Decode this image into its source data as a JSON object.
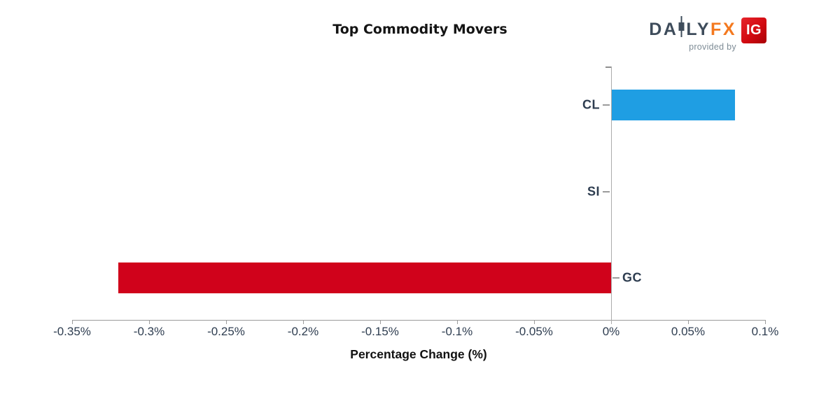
{
  "header": {
    "title": "Top Commodity Movers",
    "logo": {
      "brand_da": "DA",
      "brand_ly": "LY",
      "brand_fx": "FX",
      "tagline": "provided by",
      "ig_label": "IG",
      "colors": {
        "brand_text": "#3E4C5B",
        "brand_fx": "#F4791F",
        "tagline": "#7E8C96",
        "ig_background": "#D20A11",
        "ig_text": "#FFFFFF"
      }
    }
  },
  "chart_data": {
    "type": "bar",
    "orientation": "horizontal",
    "title": "Top Commodity Movers",
    "xlabel": "Percentage Change (%)",
    "ylabel": "",
    "categories": [
      "CL",
      "SI",
      "GC"
    ],
    "values": [
      0.08,
      0.0,
      -0.32
    ],
    "bar_colors": [
      "#1F9EE3",
      "#1F9EE3",
      "#D0021B"
    ],
    "xlim": [
      -0.35,
      0.1
    ],
    "x_ticks": [
      {
        "label": "-0.35%",
        "value": -0.35
      },
      {
        "label": "-0.3%",
        "value": -0.3
      },
      {
        "label": "-0.25%",
        "value": -0.25
      },
      {
        "label": "-0.2%",
        "value": -0.2
      },
      {
        "label": "-0.15%",
        "value": -0.15
      },
      {
        "label": "-0.1%",
        "value": -0.1
      },
      {
        "label": "-0.05%",
        "value": -0.05
      },
      {
        "label": "0%",
        "value": 0.0
      },
      {
        "label": "0.05%",
        "value": 0.05
      },
      {
        "label": "0.1%",
        "value": 0.1
      }
    ],
    "grid": false,
    "zero_line": true,
    "legend": null,
    "text_color": "#2E3D50",
    "axis_color": "#9B9B9B"
  }
}
